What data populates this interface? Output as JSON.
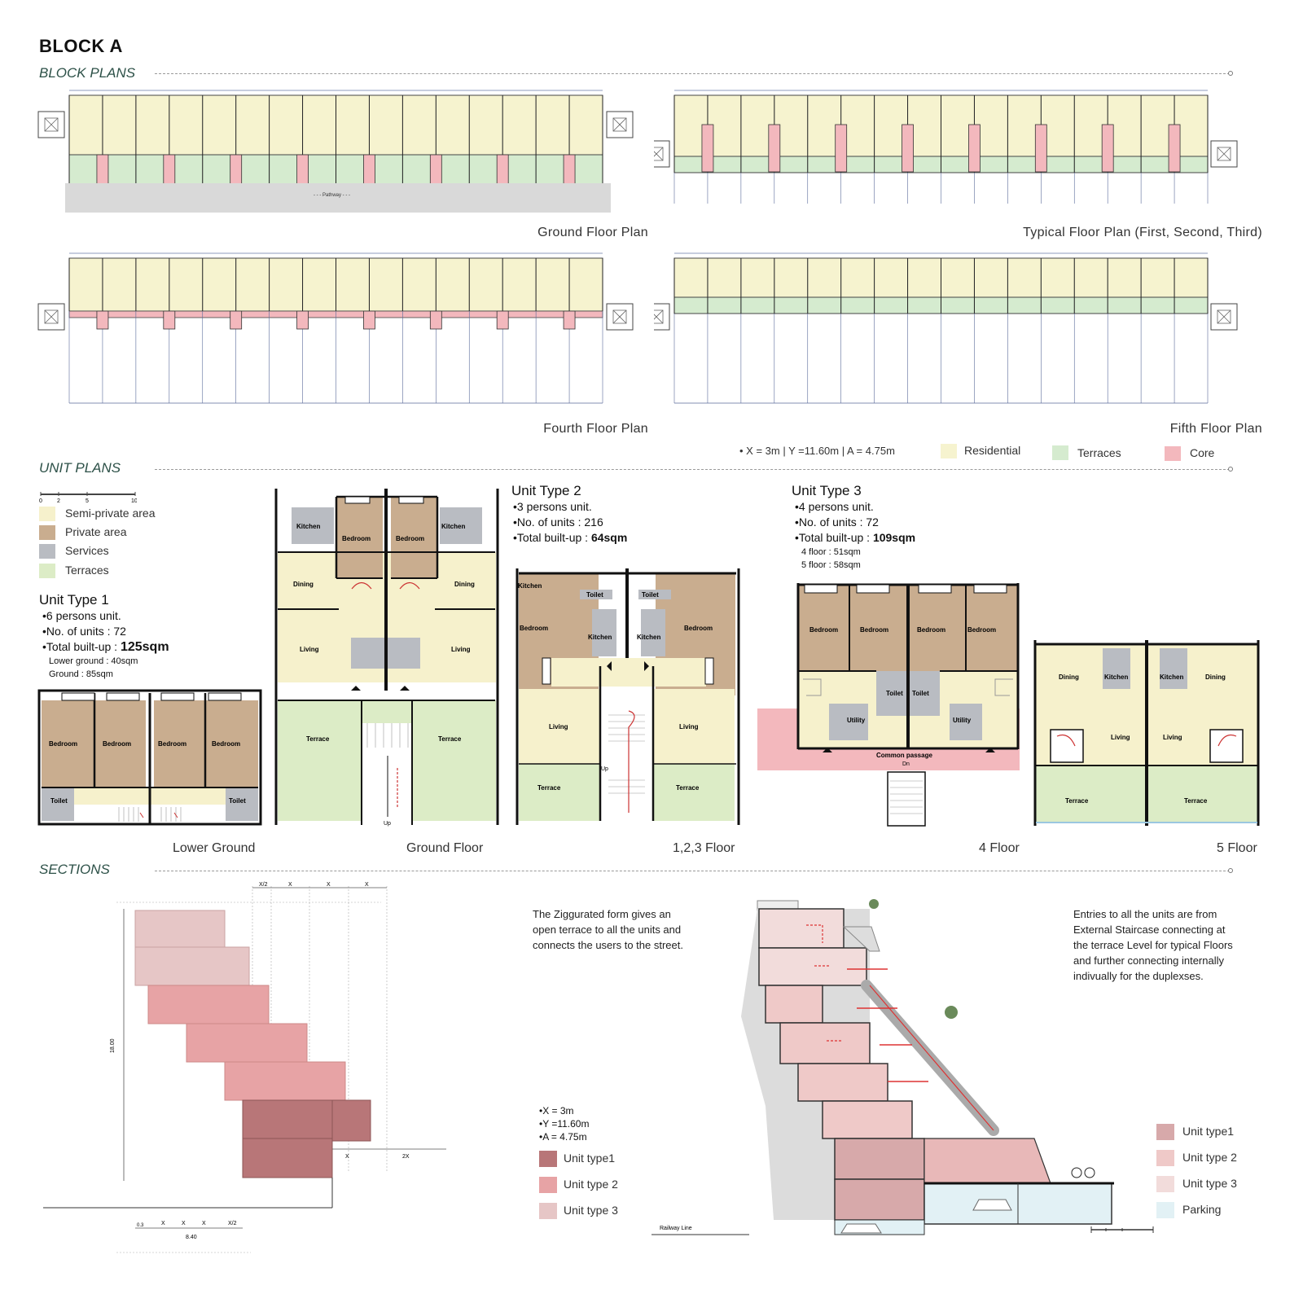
{
  "page_title": "BLOCK A",
  "sections": {
    "block_plans": "BLOCK PLANS",
    "unit_plans": "UNIT PLANS",
    "sections": "SECTIONS"
  },
  "plan_captions": {
    "ground": "Ground Floor Plan",
    "typical": "Typical Floor Plan (First, Second, Third)",
    "fourth": "Fourth Floor Plan",
    "fifth": "Fifth Floor Plan"
  },
  "block_legend": {
    "dims": "• X = 3m | Y =11.60m | A = 4.75m",
    "items": [
      {
        "label": "Residential",
        "color": "#f6f3cf"
      },
      {
        "label": "Terraces",
        "color": "#d5ebcf"
      },
      {
        "label": "Core",
        "color": "#f3b8bd"
      }
    ]
  },
  "unit_legend": {
    "scale_ticks": [
      "0",
      "2",
      "5",
      "10"
    ],
    "items": [
      {
        "label": "Semi-private area",
        "color": "#f6f1cc"
      },
      {
        "label": "Private area",
        "color": "#c9ad8f"
      },
      {
        "label": "Services",
        "color": "#b9bcc2"
      },
      {
        "label": "Terraces",
        "color": "#dcecc6"
      }
    ]
  },
  "unit_types": [
    {
      "title": "Unit Type 1",
      "persons": "•6 persons unit.",
      "units": "•No. of units : 72",
      "builtup_label": "•Total built-up : ",
      "builtup_value": "125sqm",
      "sub": [
        "Lower ground : 40sqm",
        "Ground : 85sqm"
      ]
    },
    {
      "title": "Unit Type 2",
      "persons": "•3 persons unit.",
      "units": "•No. of units : 216",
      "builtup_label": "•Total built-up : ",
      "builtup_value": "64sqm",
      "sub": []
    },
    {
      "title": "Unit Type 3",
      "persons": "•4 persons unit.",
      "units": "•No. of units : 72",
      "builtup_label": "•Total built-up : ",
      "builtup_value": "109sqm",
      "sub": [
        "4 floor : 51sqm",
        "5 floor : 58sqm"
      ]
    }
  ],
  "floor_captions": [
    "Lower Ground",
    "Ground Floor",
    "1,2,3 Floor",
    "4 Floor",
    "5 Floor"
  ],
  "room_labels": {
    "bedroom": "Bedroom",
    "toilet": "Toilet",
    "kitchen": "Kitchen",
    "dining": "Dining",
    "living": "Living",
    "terrace": "Terrace",
    "utility": "Utility",
    "common_passage": "Common passage",
    "up": "Up",
    "dn": "Dn",
    "pathway": "- - - Pathway - - -",
    "railway": "Railway Line"
  },
  "section_notes": {
    "ziggurat": [
      "The Ziggurated form gives an",
      "open terrace to all the units and",
      "connects the users to the street."
    ],
    "entries": [
      "Entries to all the units are from",
      "External Staircase connecting at",
      "the terrace Level for typical Floors",
      "and further connecting internally",
      "indivually for the duplexses."
    ]
  },
  "section_legend_left": {
    "dims": [
      "•X = 3m",
      "•Y =11.60m",
      "•A = 4.75m"
    ],
    "items": [
      {
        "label": "Unit type1",
        "color": "#b87678"
      },
      {
        "label": "Unit type 2",
        "color": "#e7a3a5"
      },
      {
        "label": "Unit type 3",
        "color": "#e6c6c6"
      }
    ]
  },
  "section_legend_right": {
    "items": [
      {
        "label": "Unit type1",
        "color": "#d7a9aa"
      },
      {
        "label": "Unit type 2",
        "color": "#efc9c8"
      },
      {
        "label": "Unit type 3",
        "color": "#f2dcdb"
      },
      {
        "label": "Parking",
        "color": "#e2f1f5"
      }
    ]
  },
  "section_dims": {
    "top": [
      "X/2",
      "X",
      "X",
      "X"
    ],
    "bottom": [
      "0.3",
      "X",
      "X",
      "X",
      "X/2"
    ],
    "bottom_total": "8.40",
    "height": "18.00",
    "right": [
      "X",
      "2X"
    ]
  },
  "colors": {
    "residential": "#f6f3cf",
    "terrace": "#d5ebcf",
    "core": "#f3b8bd",
    "private": "#c9ad8f",
    "services": "#b9bcc2",
    "semi": "#f6f1cc",
    "heading": "#2d5148"
  }
}
